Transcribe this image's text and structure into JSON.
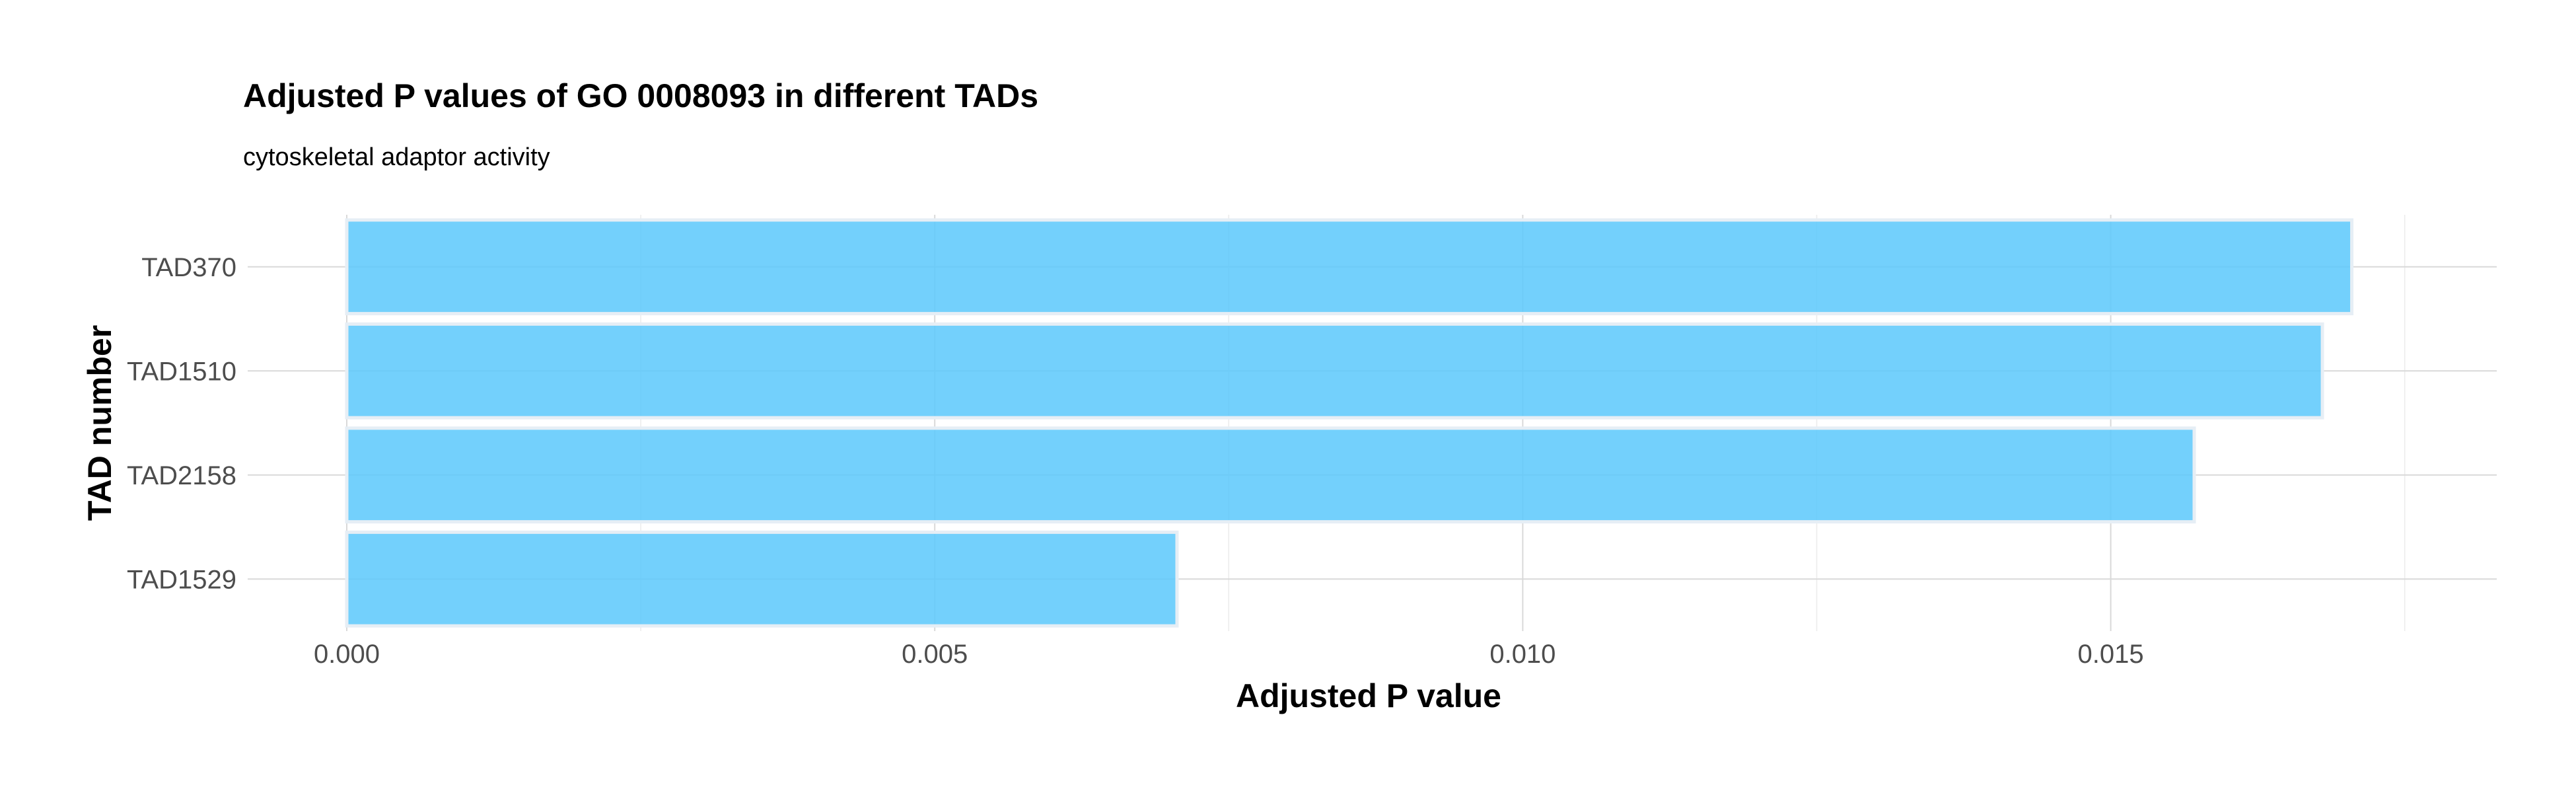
{
  "chart_data": {
    "type": "bar",
    "orientation": "horizontal",
    "title": "Adjusted P values of GO 0008093 in different TADs",
    "subtitle": "cytoskeletal adaptor activity",
    "xlabel": "Adjusted P value",
    "ylabel": "TAD number",
    "categories": [
      "TAD370",
      "TAD1510",
      "TAD2158",
      "TAD1529"
    ],
    "values": [
      0.01705,
      0.0168,
      0.01571,
      0.00706
    ],
    "xlim": [
      0,
      0.01785
    ],
    "x_ticks": [
      0.0,
      0.005,
      0.01,
      0.015
    ],
    "x_tick_labels": [
      "0.000",
      "0.005",
      "0.010",
      "0.015"
    ],
    "bar_color": "#5bc8fb",
    "grid": true,
    "legend": false
  }
}
